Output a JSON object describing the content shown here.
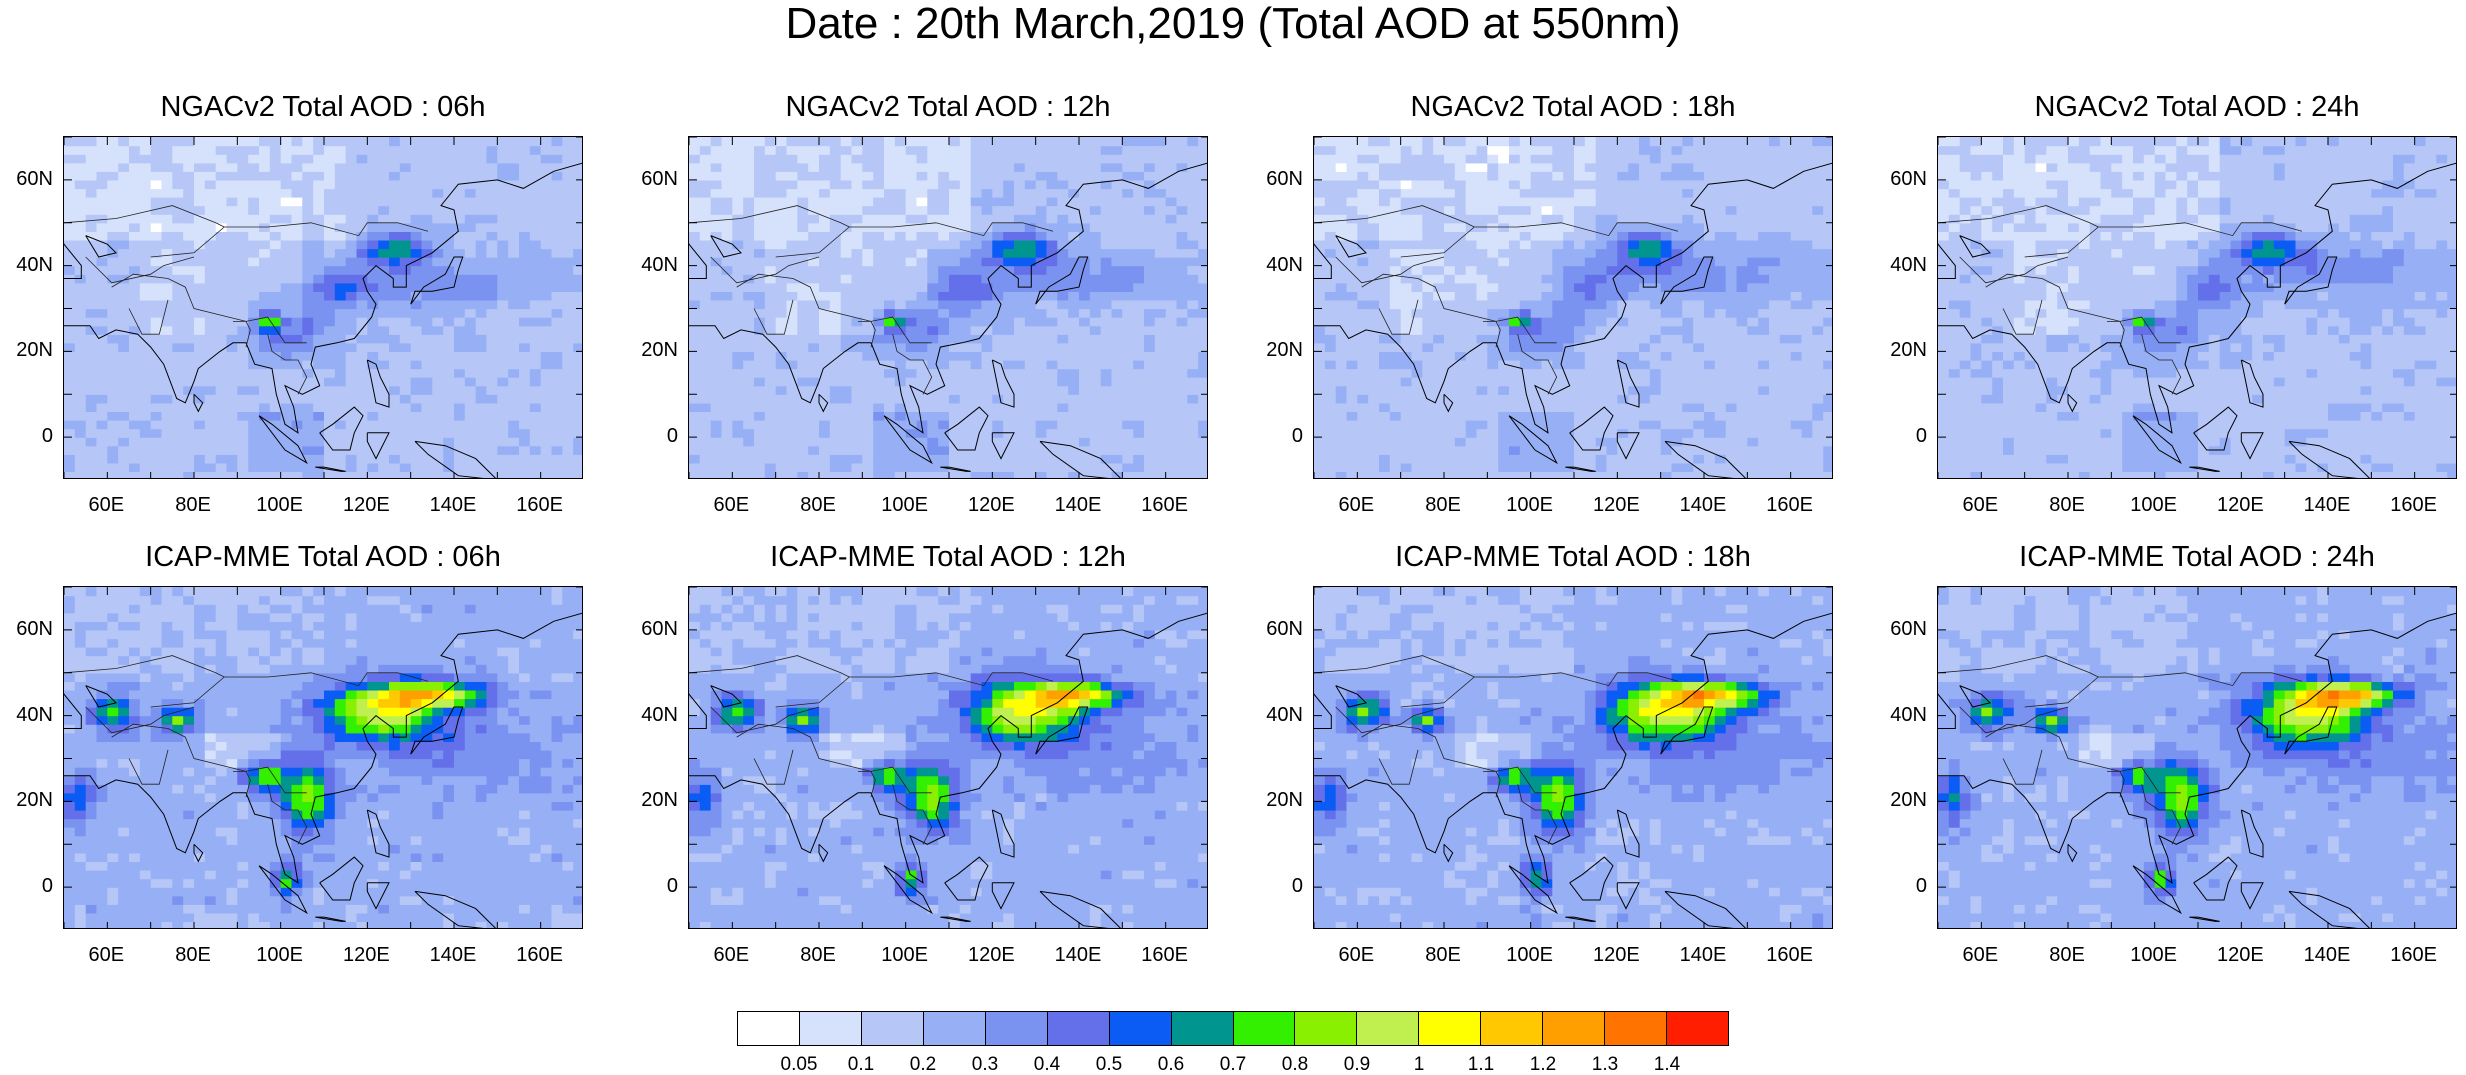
{
  "title": "Date : 20th March,2019 (Total AOD at 550nm)",
  "x_ticks": [
    "60E",
    "80E",
    "100E",
    "120E",
    "140E",
    "160E"
  ],
  "y_ticks": [
    "60N",
    "40N",
    "20N",
    "0"
  ],
  "panels": [
    {
      "title": "NGACv2 Total AOD : 06h",
      "model": "NGACv2",
      "hour": "06h"
    },
    {
      "title": "NGACv2 Total AOD : 12h",
      "model": "NGACv2",
      "hour": "12h"
    },
    {
      "title": "NGACv2 Total AOD : 18h",
      "model": "NGACv2",
      "hour": "18h"
    },
    {
      "title": "NGACv2 Total AOD : 24h",
      "model": "NGACv2",
      "hour": "24h"
    },
    {
      "title": "ICAP-MME Total AOD : 06h",
      "model": "ICAP-MME",
      "hour": "06h"
    },
    {
      "title": "ICAP-MME Total AOD : 12h",
      "model": "ICAP-MME",
      "hour": "12h"
    },
    {
      "title": "ICAP-MME Total AOD : 18h",
      "model": "ICAP-MME",
      "hour": "18h"
    },
    {
      "title": "ICAP-MME Total AOD : 24h",
      "model": "ICAP-MME",
      "hour": "24h"
    }
  ],
  "colorbar": {
    "labels": [
      "0.05",
      "0.1",
      "0.2",
      "0.3",
      "0.4",
      "0.5",
      "0.6",
      "0.7",
      "0.8",
      "0.9",
      "1",
      "1.1",
      "1.2",
      "1.3",
      "1.4"
    ],
    "colors": [
      "#ffffff",
      "#d6e2fb",
      "#b6c7f7",
      "#97b0f5",
      "#7b93f0",
      "#6470ea",
      "#0a5cf5",
      "#00958f",
      "#33f000",
      "#88f000",
      "#c0f050",
      "#ffff00",
      "#ffc800",
      "#ffa000",
      "#ff7300",
      "#ff1e00"
    ]
  }
}
